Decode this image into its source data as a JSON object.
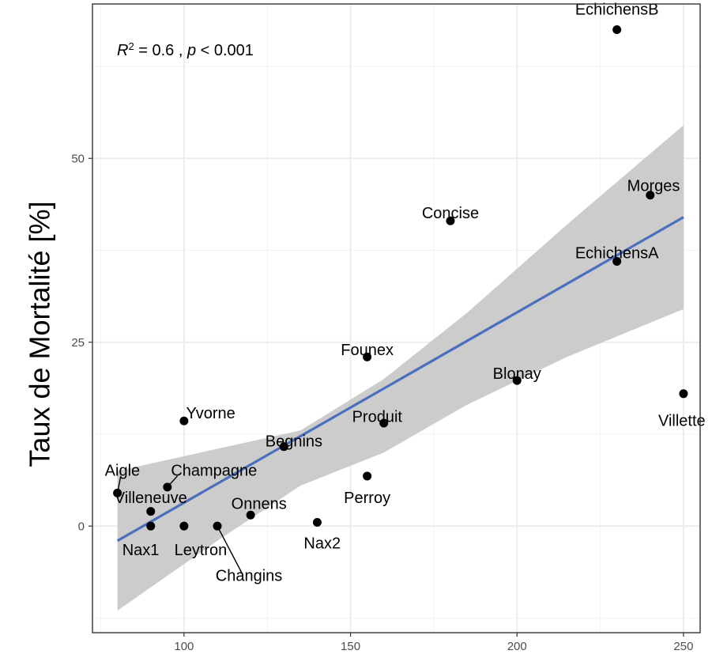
{
  "chart_data": {
    "type": "scatter",
    "ylabel": "Taux de Mortalité [%]",
    "xlabel": "",
    "xlim": [
      72.5,
      255
    ],
    "ylim": [
      -14.5,
      71
    ],
    "x_ticks": [
      100,
      150,
      200,
      250
    ],
    "y_ticks": [
      0,
      25,
      50
    ],
    "grid": true,
    "annotation": {
      "r2_symbol": "R",
      "r2_exp": "2",
      "r2_rest": " = 0.6 , ",
      "p_symbol": "p",
      "p_rest": " < 0.001"
    },
    "regression": {
      "x_range": [
        80,
        250
      ],
      "y_at_xmin": -2,
      "y_at_xmax": 42,
      "line_color": "#4a6fbf",
      "band_color": "#c6c6c6",
      "band": [
        {
          "x": 80,
          "lo": -11.5,
          "hi": 7.5
        },
        {
          "x": 110,
          "lo": -2,
          "hi": 10.5
        },
        {
          "x": 135,
          "lo": 5.5,
          "hi": 13
        },
        {
          "x": 160,
          "lo": 10,
          "hi": 20
        },
        {
          "x": 185,
          "lo": 16.5,
          "hi": 29
        },
        {
          "x": 215,
          "lo": 23,
          "hi": 41
        },
        {
          "x": 250,
          "lo": 29.5,
          "hi": 54.5
        }
      ]
    },
    "points": [
      {
        "name": "EchichensB",
        "x": 230,
        "y": 67.5,
        "lx": 230,
        "ly": 70.3
      },
      {
        "name": "Morges",
        "x": 240,
        "y": 45,
        "lx": 241,
        "ly": 46.3
      },
      {
        "name": "Concise",
        "x": 180,
        "y": 41.5,
        "lx": 180,
        "ly": 42.6
      },
      {
        "name": "EchichensA",
        "x": 230,
        "y": 36,
        "lx": 230,
        "ly": 37.2
      },
      {
        "name": "Founex",
        "x": 155,
        "y": 23,
        "lx": 155,
        "ly": 24
      },
      {
        "name": "Blonay",
        "x": 200,
        "y": 19.8,
        "lx": 200,
        "ly": 20.8
      },
      {
        "name": "Villette",
        "x": 250,
        "y": 18,
        "lx": 249.5,
        "ly": 14.4
      },
      {
        "name": "Yvorne",
        "x": 100,
        "y": 14.3,
        "lx": 108,
        "ly": 15.4
      },
      {
        "name": "Produit",
        "x": 160,
        "y": 14,
        "lx": 158,
        "ly": 14.9
      },
      {
        "name": "Begnins",
        "x": 130,
        "y": 10.8,
        "lx": 133,
        "ly": 11.6
      },
      {
        "name": "Champagne",
        "x": 95,
        "y": 5.3,
        "lx": 109,
        "ly": 7.6
      },
      {
        "name": "Aigle",
        "x": 80,
        "y": 4.5,
        "lx": 81.5,
        "ly": 7.6
      },
      {
        "name": "Perroy",
        "x": 155,
        "y": 6.8,
        "lx": 155,
        "ly": 3.9
      },
      {
        "name": "Villeneuve",
        "x": 90,
        "y": 2,
        "lx": 90,
        "ly": 3.9
      },
      {
        "name": "Onnens",
        "x": 120,
        "y": 1.5,
        "lx": 122.5,
        "ly": 3.1
      },
      {
        "name": "Nax2",
        "x": 140,
        "y": 0.5,
        "lx": 141.5,
        "ly": -2.3
      },
      {
        "name": "Nax1",
        "x": 90,
        "y": 0,
        "lx": 87,
        "ly": -3.2
      },
      {
        "name": "Leytron",
        "x": 100,
        "y": 0,
        "lx": 105,
        "ly": -3.2
      },
      {
        "name": "Changins",
        "x": 110,
        "y": 0,
        "lx": 119.5,
        "ly": -6.7
      }
    ],
    "leaders": [
      {
        "x1": 80,
        "y1": 4.5,
        "x2": 81,
        "y2": 6.8
      },
      {
        "x1": 95,
        "y1": 5.3,
        "x2": 98,
        "y2": 6.8
      },
      {
        "x1": 110,
        "y1": 0,
        "x2": 117.5,
        "y2": -6.5
      }
    ]
  }
}
